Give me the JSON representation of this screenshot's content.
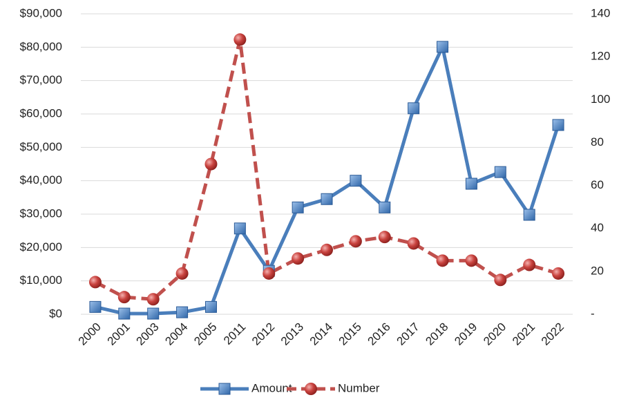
{
  "chart_data": {
    "type": "line",
    "categories": [
      "2000",
      "2001",
      "2003",
      "2004",
      "2005",
      "2011",
      "2012",
      "2013",
      "2014",
      "2015",
      "2016",
      "2017",
      "2018",
      "2019",
      "2020",
      "2021",
      "2022"
    ],
    "series": [
      {
        "name": "Amount",
        "color": "#4a7ebb",
        "values": [
          2200,
          200,
          200,
          600,
          2200,
          25700,
          13000,
          32000,
          34500,
          40000,
          32000,
          61700,
          80100,
          39100,
          42600,
          29800,
          56700
        ]
      },
      {
        "name": "Number",
        "color": "#c0504d",
        "axis": "y2",
        "values": [
          15,
          8,
          7,
          19,
          70,
          128,
          19,
          26,
          30,
          34,
          36,
          33,
          25,
          25,
          16,
          23,
          19
        ]
      }
    ],
    "ylim": [
      0,
      90000
    ],
    "yticks": [
      {
        "value": 0,
        "label": "$0"
      },
      {
        "value": 10000,
        "label": "$10,000"
      },
      {
        "value": 20000,
        "label": "$20,000"
      },
      {
        "value": 30000,
        "label": "$30,000"
      },
      {
        "value": 40000,
        "label": "$40,000"
      },
      {
        "value": 50000,
        "label": "$50,000"
      },
      {
        "value": 60000,
        "label": "$60,000"
      },
      {
        "value": 70000,
        "label": "$70,000"
      },
      {
        "value": 80000,
        "label": "$80,000"
      },
      {
        "value": 90000,
        "label": "$90,000"
      }
    ],
    "y2lim": [
      0,
      140
    ],
    "y2ticks": [
      {
        "value": 0,
        "label": "-"
      },
      20,
      40,
      60,
      80,
      100,
      120,
      140
    ],
    "grid": true,
    "legend": "bottom"
  }
}
